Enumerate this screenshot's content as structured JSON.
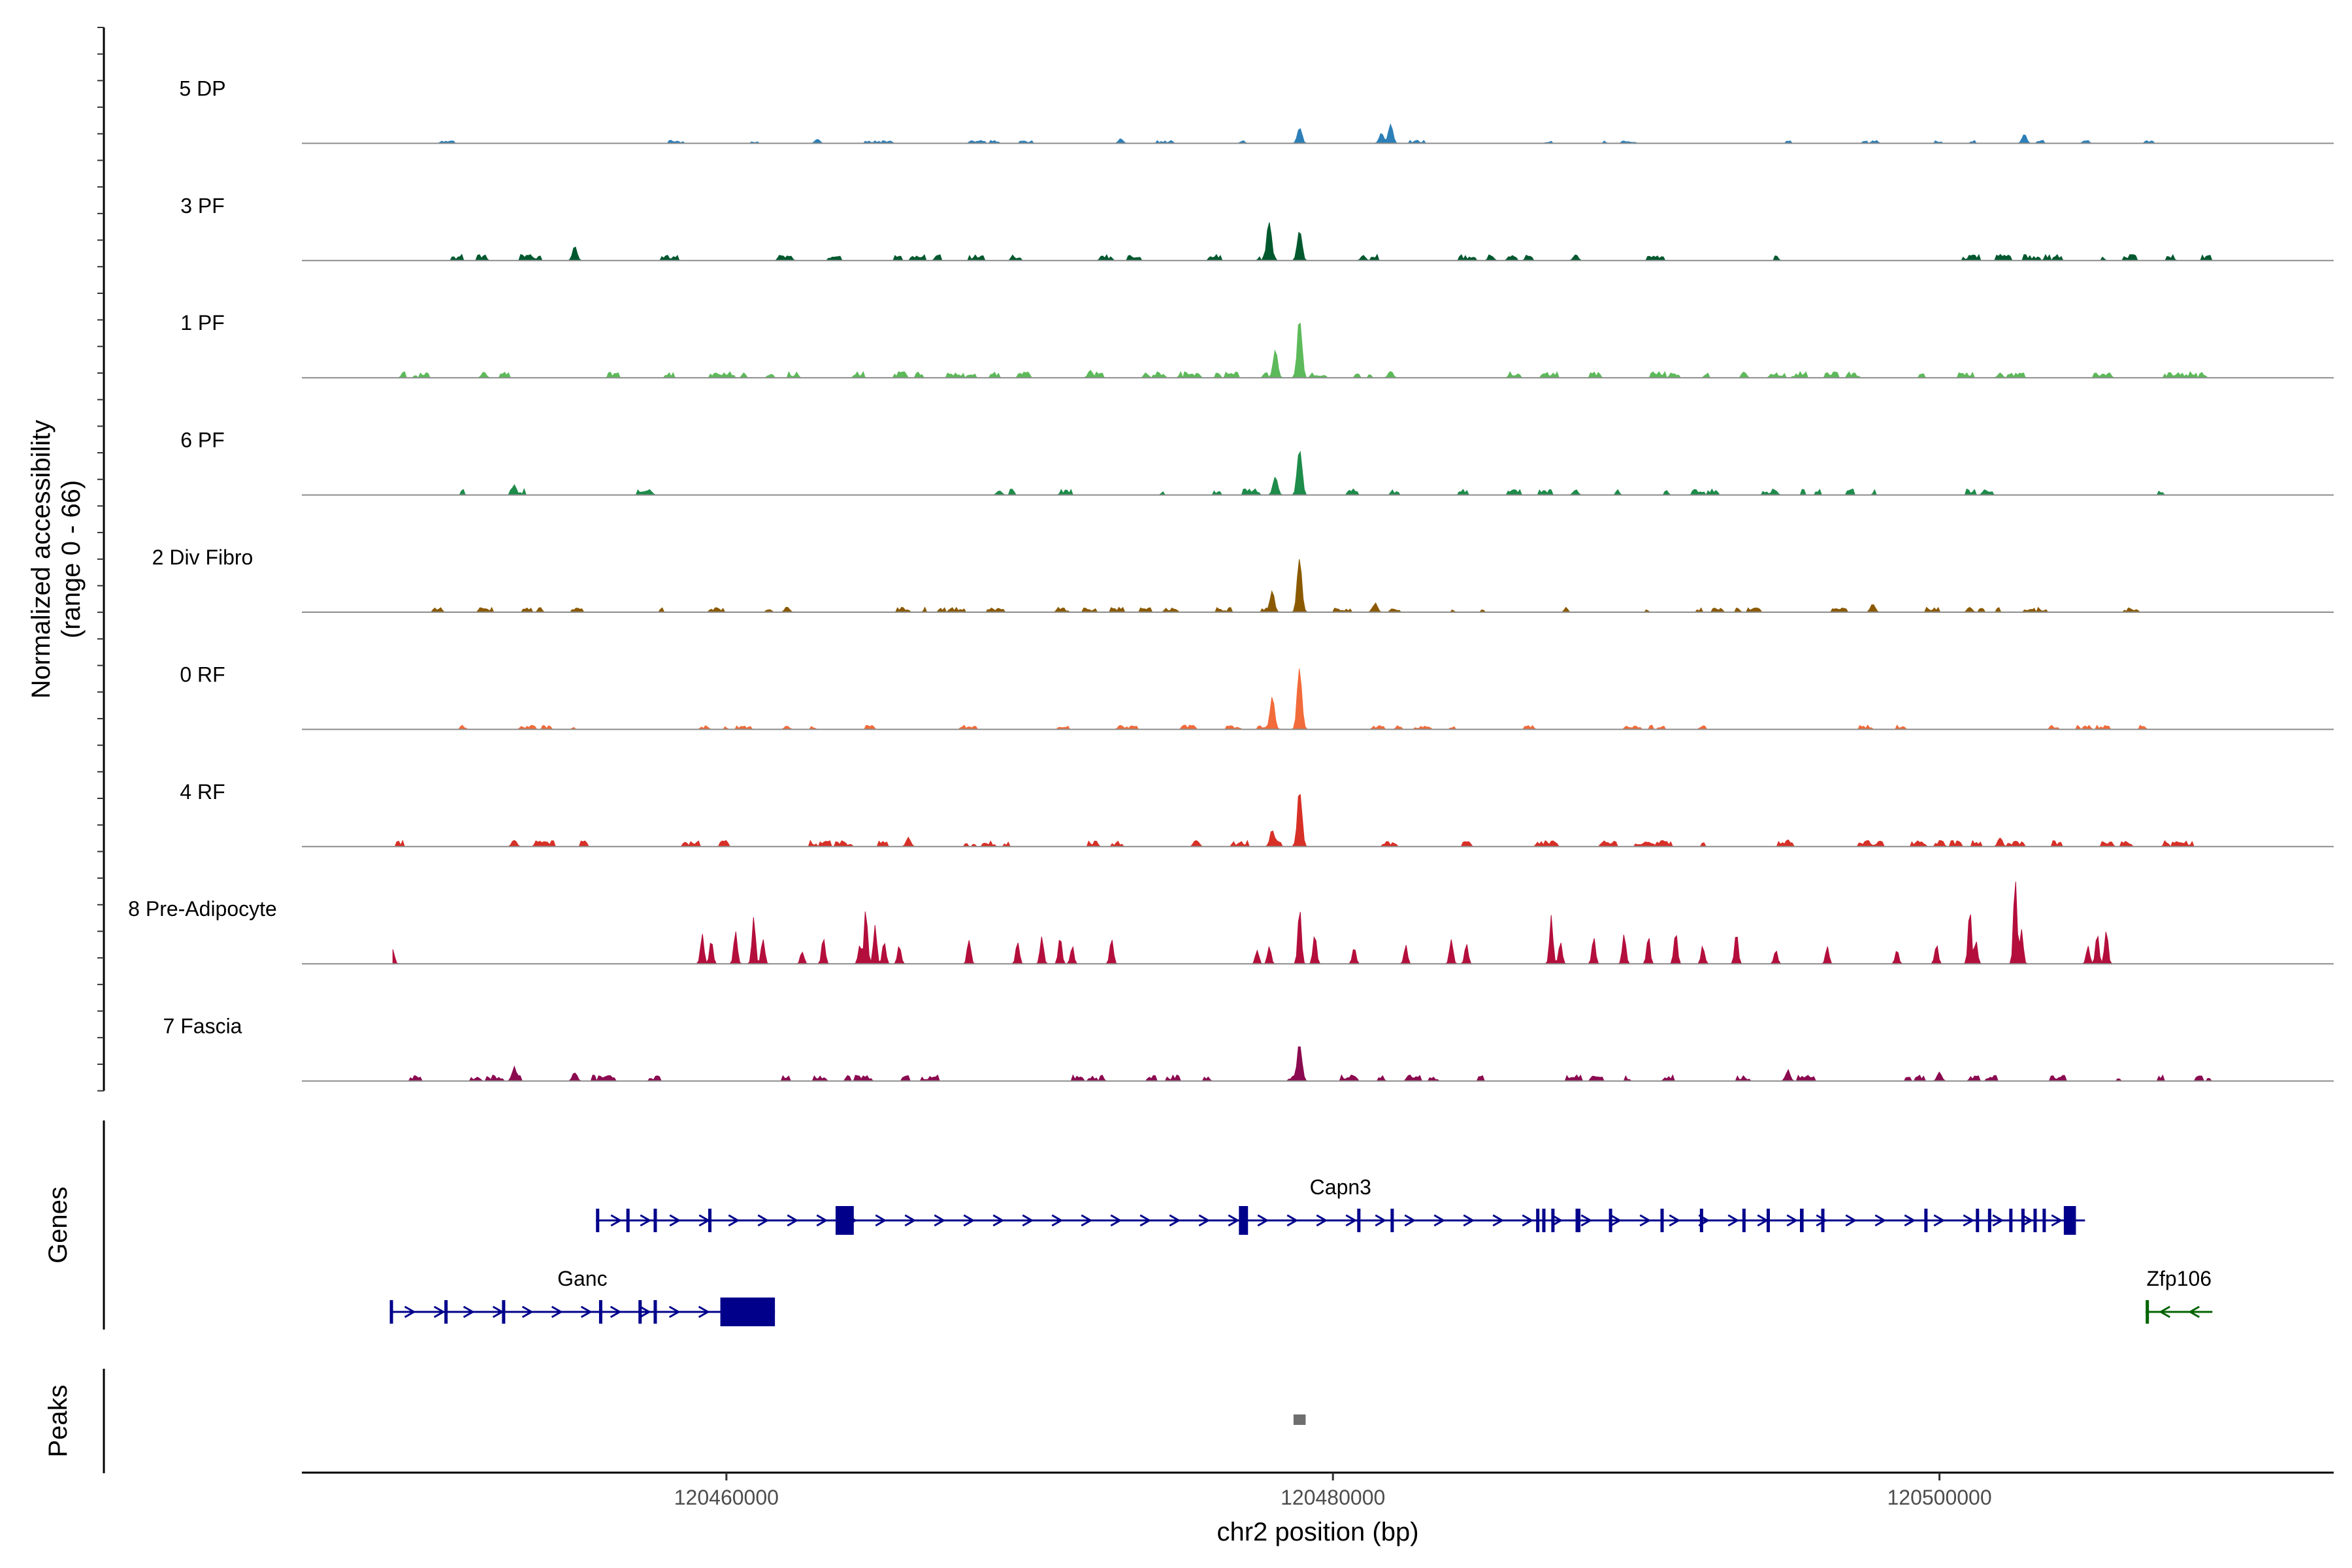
{
  "chart_data": {
    "type": "genome-coverage",
    "y_axis_title": "Normalized accessibility",
    "y_axis_range_label": "(range 0 - 66)",
    "y_range": [
      0,
      66
    ],
    "x_axis_title": "chr2 position (bp)",
    "x_range": [
      120446000,
      120513000
    ],
    "x_ticks": [
      {
        "value": 120460000,
        "label": "120460000"
      },
      {
        "value": 120480000,
        "label": "120480000"
      },
      {
        "value": 120500000,
        "label": "120500000"
      }
    ],
    "genes_panel_title": "Genes",
    "peaks_panel_title": "Peaks",
    "tracks": [
      {
        "name": "5 DP",
        "color": "#2c7fb8",
        "noise": 0.025,
        "density": 0.35,
        "start": 120449000,
        "end": 120509000,
        "peaks": [
          [
            120478900,
            0.18
          ],
          [
            120481900,
            0.22
          ],
          [
            120481600,
            0.12
          ],
          [
            120502800,
            0.1
          ],
          [
            120473000,
            0.05
          ],
          [
            120463000,
            0.05
          ]
        ]
      },
      {
        "name": "3 PF",
        "color": "#00592e",
        "noise": 0.05,
        "density": 0.55,
        "start": 120450500,
        "end": 120509000,
        "peaks": [
          [
            120477900,
            0.46
          ],
          [
            120478900,
            0.36
          ],
          [
            120455000,
            0.15
          ],
          [
            120481000,
            0.06
          ],
          [
            120488000,
            0.07
          ],
          [
            120502000,
            0.07
          ]
        ]
      },
      {
        "name": "1 PF",
        "color": "#5dba5a",
        "noise": 0.05,
        "density": 0.7,
        "start": 120449000,
        "end": 120509000,
        "peaks": [
          [
            120478900,
            0.68
          ],
          [
            120478100,
            0.3
          ],
          [
            120481900,
            0.08
          ],
          [
            120472000,
            0.08
          ],
          [
            120452000,
            0.06
          ],
          [
            120502000,
            0.05
          ]
        ]
      },
      {
        "name": "6 PF",
        "color": "#1e8c4a",
        "noise": 0.05,
        "density": 0.55,
        "start": 120449000,
        "end": 120509000,
        "peaks": [
          [
            120478900,
            0.55
          ],
          [
            120478100,
            0.22
          ],
          [
            120453000,
            0.12
          ],
          [
            120488000,
            0.06
          ],
          [
            120501500,
            0.06
          ],
          [
            120469000,
            0.05
          ]
        ]
      },
      {
        "name": "2 Div Fibro",
        "color": "#8b5a00",
        "noise": 0.04,
        "density": 0.5,
        "start": 120450000,
        "end": 120509000,
        "peaks": [
          [
            120478900,
            0.62
          ],
          [
            120478000,
            0.22
          ],
          [
            120481400,
            0.1
          ],
          [
            120497800,
            0.1
          ],
          [
            120462000,
            0.06
          ],
          [
            120501000,
            0.06
          ]
        ]
      },
      {
        "name": "0 RF",
        "color": "#f26b3a",
        "noise": 0.035,
        "density": 0.65,
        "start": 120450000,
        "end": 120509000,
        "peaks": [
          [
            120478900,
            0.68
          ],
          [
            120478000,
            0.36
          ],
          [
            120473000,
            0.05
          ],
          [
            120462000,
            0.04
          ]
        ]
      },
      {
        "name": "4 RF",
        "color": "#d73027",
        "noise": 0.05,
        "density": 0.6,
        "start": 120449000,
        "end": 120509000,
        "peaks": [
          [
            120478900,
            0.64
          ],
          [
            120478000,
            0.2
          ],
          [
            120453000,
            0.08
          ],
          [
            120466000,
            0.1
          ],
          [
            120502000,
            0.1
          ],
          [
            120495000,
            0.08
          ]
        ]
      },
      {
        "name": "8 Pre-Adipocyte",
        "color": "#b40f3c",
        "noise": 0.0,
        "density": 0.0,
        "start": 120449000,
        "end": 120509000,
        "peaks": [
          [
            120449000,
            0.15
          ],
          [
            120459200,
            0.35
          ],
          [
            120459500,
            0.25
          ],
          [
            120460300,
            0.4
          ],
          [
            120460900,
            0.5
          ],
          [
            120461200,
            0.3
          ],
          [
            120462500,
            0.15
          ],
          [
            120463200,
            0.3
          ],
          [
            120464400,
            0.22
          ],
          [
            120464600,
            0.6
          ],
          [
            120464900,
            0.4
          ],
          [
            120465200,
            0.25
          ],
          [
            120465700,
            0.2
          ],
          [
            120468000,
            0.3
          ],
          [
            120469600,
            0.25
          ],
          [
            120470400,
            0.32
          ],
          [
            120471000,
            0.3
          ],
          [
            120471400,
            0.2
          ],
          [
            120472700,
            0.28
          ],
          [
            120477500,
            0.15
          ],
          [
            120477900,
            0.2
          ],
          [
            120478900,
            0.6
          ],
          [
            120479400,
            0.35
          ],
          [
            120480700,
            0.2
          ],
          [
            120482400,
            0.2
          ],
          [
            120483900,
            0.3
          ],
          [
            120484400,
            0.22
          ],
          [
            120487200,
            0.5
          ],
          [
            120487500,
            0.25
          ],
          [
            120488600,
            0.28
          ],
          [
            120489600,
            0.35
          ],
          [
            120490400,
            0.3
          ],
          [
            120491300,
            0.35
          ],
          [
            120492200,
            0.2
          ],
          [
            120493300,
            0.35
          ],
          [
            120494600,
            0.15
          ],
          [
            120496300,
            0.18
          ],
          [
            120498600,
            0.15
          ],
          [
            120499900,
            0.22
          ],
          [
            120501000,
            0.6
          ],
          [
            120501200,
            0.25
          ],
          [
            120502500,
            1.0
          ],
          [
            120502700,
            0.4
          ],
          [
            120504900,
            0.2
          ],
          [
            120505200,
            0.32
          ],
          [
            120505500,
            0.38
          ]
        ]
      },
      {
        "name": "7 Fascia",
        "color": "#8b0a50",
        "noise": 0.05,
        "density": 0.6,
        "start": 120449000,
        "end": 120509000,
        "peaks": [
          [
            120478900,
            0.45
          ],
          [
            120453000,
            0.15
          ],
          [
            120455000,
            0.1
          ],
          [
            120495000,
            0.12
          ],
          [
            120500000,
            0.1
          ]
        ]
      }
    ],
    "genes": [
      {
        "name": "Capn3",
        "strand": "+",
        "color": "#00008b",
        "start": 120455700,
        "end": 120504800,
        "exons": [
          [
            120455700,
            120455760
          ],
          [
            120456700,
            120456760
          ],
          [
            120457600,
            120457660
          ],
          [
            120459400,
            120459460
          ],
          [
            120463600,
            120464200
          ],
          [
            120476900,
            120477200
          ],
          [
            120480800,
            120480860
          ],
          [
            120481900,
            120482000
          ],
          [
            120486700,
            120486760
          ],
          [
            120486900,
            120486960
          ],
          [
            120487200,
            120487270
          ],
          [
            120488000,
            120488160
          ],
          [
            120489100,
            120489200
          ],
          [
            120490800,
            120490860
          ],
          [
            120492100,
            120492160
          ],
          [
            120493500,
            120493580
          ],
          [
            120494300,
            120494360
          ],
          [
            120495400,
            120495520
          ],
          [
            120496100,
            120496200
          ],
          [
            120499500,
            120499600
          ],
          [
            120501200,
            120501250
          ],
          [
            120501600,
            120501700
          ],
          [
            120502300,
            120502360
          ],
          [
            120502700,
            120502760
          ],
          [
            120503100,
            120503160
          ],
          [
            120503400,
            120503460
          ],
          [
            120504100,
            120504500
          ]
        ]
      },
      {
        "name": "Ganc",
        "strand": "+",
        "color": "#00008b",
        "start": 120448900,
        "end": 120461600,
        "exons": [
          [
            120448900,
            120448960
          ],
          [
            120450700,
            120450760
          ],
          [
            120452600,
            120452660
          ],
          [
            120455800,
            120455860
          ],
          [
            120457100,
            120457160
          ],
          [
            120457600,
            120457660
          ],
          [
            120459800,
            120461600
          ]
        ]
      },
      {
        "name": "Zfp106",
        "strand": "-",
        "color": "#006400",
        "start": 120506800,
        "end": 120509000,
        "exons": [
          [
            120506800,
            120506830
          ]
        ]
      }
    ],
    "peak_regions": [
      [
        120478700,
        120479100
      ]
    ]
  }
}
